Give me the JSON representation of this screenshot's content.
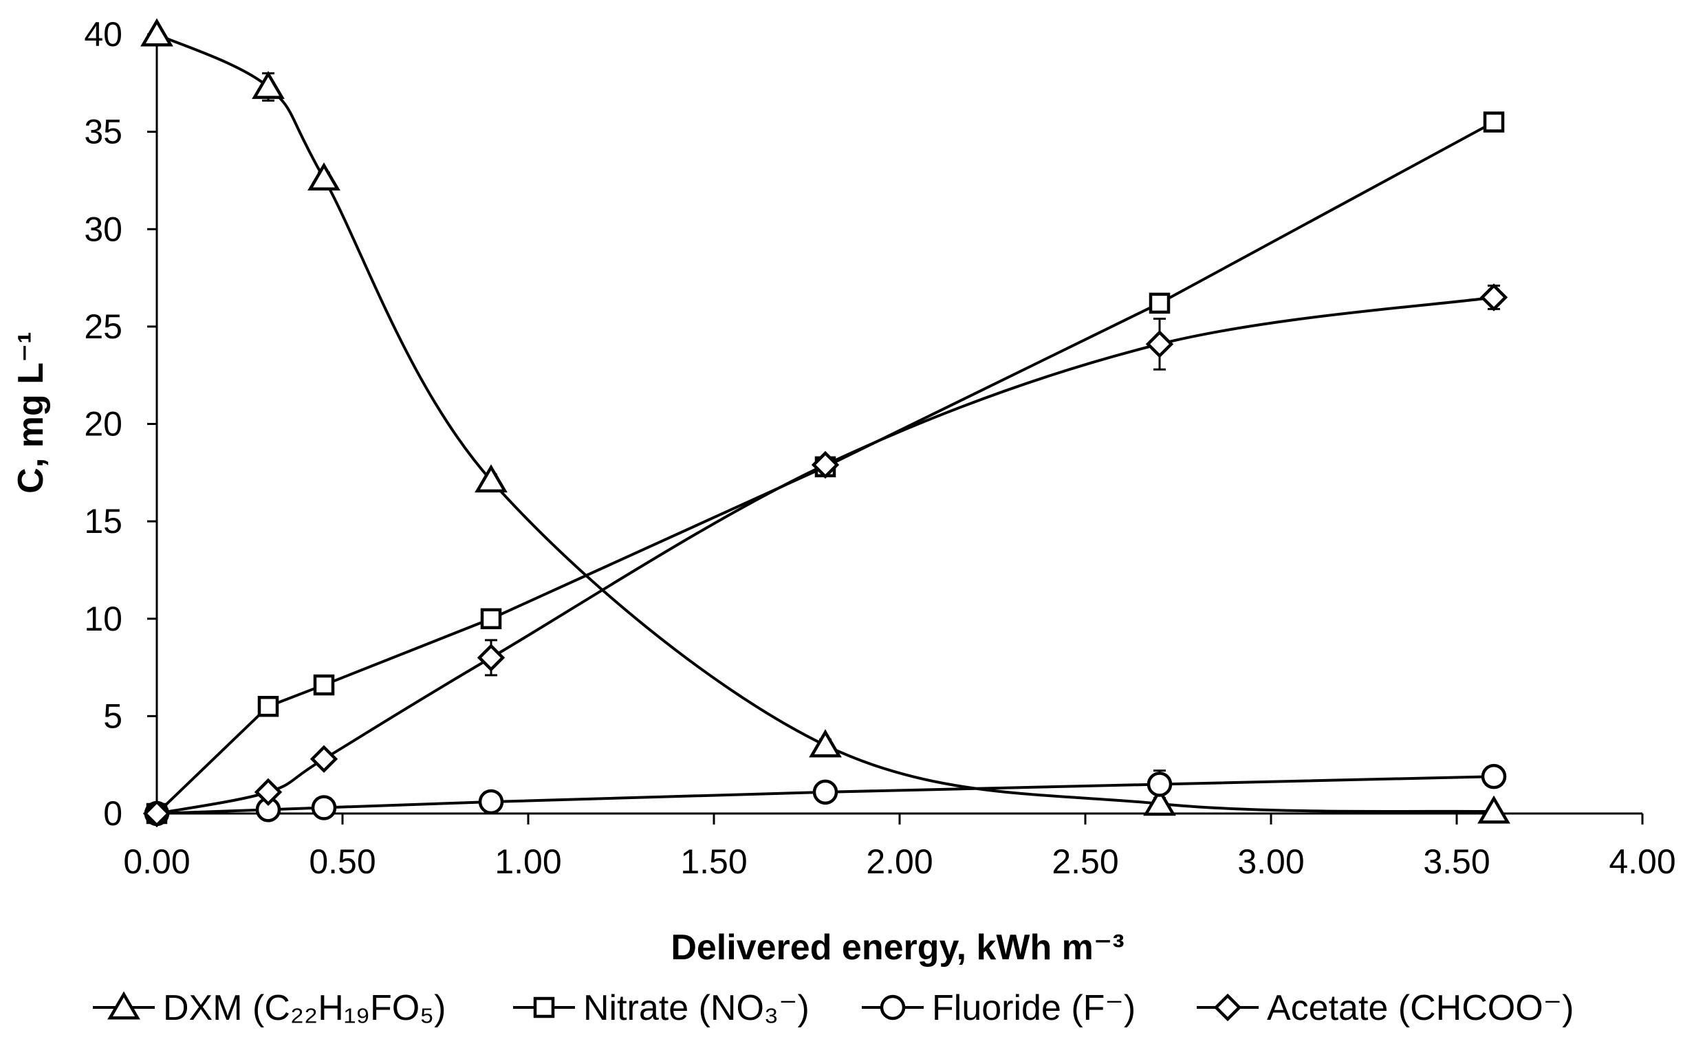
{
  "chart_data": {
    "type": "line",
    "title": "",
    "xlabel": "Delivered energy, kWh m⁻³",
    "ylabel": "C, mg L⁻¹",
    "xlim": [
      0,
      4
    ],
    "ylim": [
      0,
      40
    ],
    "x_ticks": [
      "0.00",
      "0.50",
      "1.00",
      "1.50",
      "2.00",
      "2.50",
      "3.00",
      "3.50",
      "4.00"
    ],
    "y_ticks": [
      "0",
      "5",
      "10",
      "15",
      "20",
      "25",
      "30",
      "35",
      "40"
    ],
    "grid": false,
    "legend_position": "bottom",
    "x": [
      0.0,
      0.3,
      0.45,
      0.9,
      1.8,
      2.7,
      3.6
    ],
    "series": [
      {
        "name": "DXM (C₂₂H₁₉FO₅)",
        "marker": "triangle",
        "values": [
          40.0,
          37.3,
          32.6,
          17.1,
          3.5,
          0.5,
          0.1
        ],
        "errors": [
          0,
          0.7,
          0.3,
          0.3,
          0.3,
          0.2,
          0
        ],
        "curve": "smooth"
      },
      {
        "name": "Nitrate (NO₃⁻)",
        "marker": "square",
        "values": [
          0.0,
          5.5,
          6.6,
          10.0,
          17.8,
          26.2,
          35.5
        ],
        "errors": [
          0,
          0.2,
          0.2,
          0.2,
          0.2,
          0.3,
          0.2
        ],
        "curve": "straight"
      },
      {
        "name": "Fluoride (F⁻)",
        "marker": "circle",
        "values": [
          0.0,
          0.2,
          0.3,
          0.6,
          1.1,
          1.5,
          1.9
        ],
        "errors": [
          0,
          0.1,
          0.1,
          0.1,
          0.1,
          0.7,
          0.1
        ],
        "curve": "straight"
      },
      {
        "name": "Acetate (CHCOO⁻)",
        "marker": "diamond",
        "values": [
          0.0,
          1.1,
          2.8,
          8.0,
          17.9,
          24.1,
          26.5
        ],
        "errors": [
          0,
          0.2,
          0.2,
          0.9,
          0.3,
          1.3,
          0.6
        ],
        "curve": "smooth"
      }
    ]
  }
}
